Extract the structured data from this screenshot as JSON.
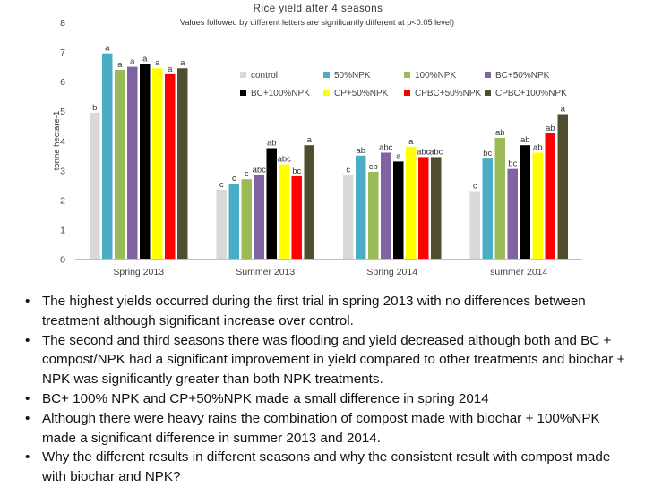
{
  "chart_data": {
    "type": "bar",
    "title": "Rice yield after 4 seasons",
    "subtitle": "Values followed by different letters are significantly different at p<0.05 level)",
    "ylabel": "tonne hectare-1",
    "xlabel": "",
    "ylim": [
      0,
      8
    ],
    "yticks": [
      0,
      1,
      2,
      3,
      4,
      5,
      6,
      7,
      8
    ],
    "grid": false,
    "legend_position": "top-right",
    "categories": [
      "Spring 2013",
      "Summer 2013",
      "Spring 2014",
      "summer 2014"
    ],
    "series": [
      {
        "name": "control",
        "color": "#d9d9d9",
        "values": [
          4.95,
          2.35,
          2.85,
          2.3
        ],
        "letters": [
          "b",
          "c",
          "c",
          "c"
        ]
      },
      {
        "name": "50%NPK",
        "color": "#4bacc6",
        "values": [
          6.95,
          2.55,
          3.5,
          3.4
        ],
        "letters": [
          "a",
          "c",
          "ab",
          "bc"
        ]
      },
      {
        "name": "100%NPK",
        "color": "#9bbb59",
        "values": [
          6.4,
          2.7,
          2.95,
          4.1
        ],
        "letters": [
          "a",
          "c",
          "cb",
          "ab"
        ]
      },
      {
        "name": "BC+50%NPK",
        "color": "#8064a2",
        "values": [
          6.5,
          2.85,
          3.6,
          3.05
        ],
        "letters": [
          "a",
          "abc",
          "abc",
          "bc"
        ]
      },
      {
        "name": "BC+100%NPK",
        "color": "#000000",
        "values": [
          6.6,
          3.75,
          3.3,
          3.85
        ],
        "letters": [
          "a",
          "ab",
          "a",
          "ab"
        ]
      },
      {
        "name": "CP+50%NPK",
        "color": "#ffff00",
        "values": [
          6.45,
          3.2,
          3.8,
          3.6
        ],
        "letters": [
          "a",
          "abc",
          "a",
          "ab"
        ]
      },
      {
        "name": "CPBC+50%NPK",
        "color": "#ff0000",
        "values": [
          6.25,
          2.8,
          3.45,
          4.25
        ],
        "letters": [
          "a",
          "bc",
          "abc",
          "ab"
        ]
      },
      {
        "name": "CPBC+100%NPK",
        "color": "#4f4f2f",
        "values": [
          6.45,
          3.85,
          3.45,
          4.9
        ],
        "letters": [
          "a",
          "a",
          "abc",
          "a"
        ]
      }
    ]
  },
  "bullets": {
    "marker": "•",
    "items": [
      "The highest yields occurred during the first trial in spring 2013 with no differences between treatment although significant increase over control.",
      "The second and third seasons there was flooding and yield decreased although both and BC + compost/NPK had a significant improvement in yield compared to other treatments and biochar + NPK was significantly greater than both NPK treatments.",
      "BC+ 100% NPK and CP+50%NPK made a small difference in spring 2014",
      "Although there were heavy rains the combination of compost made with biochar + 100%NPK made a significant difference in summer 2013 and 2014.",
      "Why the different results in different seasons and why the consistent result with compost made with biochar and NPK?"
    ]
  }
}
